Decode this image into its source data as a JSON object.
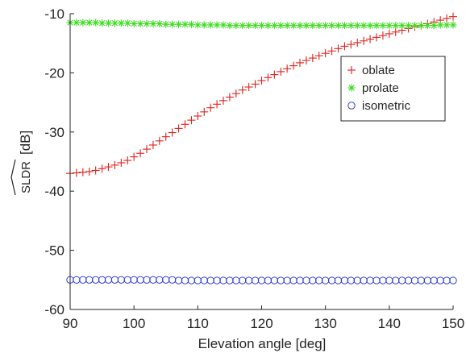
{
  "chart_data": {
    "type": "scatter",
    "xlabel": "Elevation angle [deg]",
    "ylabel": "[dB]",
    "ylabel_math": "SLDR",
    "xlim": [
      90,
      150
    ],
    "ylim": [
      -60,
      -10
    ],
    "xticks": [
      90,
      100,
      110,
      120,
      130,
      140,
      150
    ],
    "yticks": [
      -60,
      -50,
      -40,
      -30,
      -20,
      -10
    ],
    "grid": false,
    "legend_position": "top-right",
    "series": [
      {
        "name": "oblate",
        "marker": "plus",
        "color": "#e0201b",
        "x": [
          90,
          91,
          92,
          93,
          94,
          95,
          96,
          97,
          98,
          99,
          100,
          101,
          102,
          103,
          104,
          105,
          106,
          107,
          108,
          109,
          110,
          111,
          112,
          113,
          114,
          115,
          116,
          117,
          118,
          119,
          120,
          121,
          122,
          123,
          124,
          125,
          126,
          127,
          128,
          129,
          130,
          131,
          132,
          133,
          134,
          135,
          136,
          137,
          138,
          139,
          140,
          141,
          142,
          143,
          144,
          145,
          146,
          147,
          148,
          149,
          150
        ],
        "y": [
          -37.0,
          -36.9,
          -36.8,
          -36.7,
          -36.5,
          -36.2,
          -35.9,
          -35.6,
          -35.2,
          -34.8,
          -34.2,
          -33.6,
          -32.9,
          -32.2,
          -31.5,
          -30.8,
          -30.1,
          -29.4,
          -28.7,
          -28.0,
          -27.3,
          -26.6,
          -25.9,
          -25.3,
          -24.7,
          -24.1,
          -23.5,
          -22.9,
          -22.4,
          -21.9,
          -21.3,
          -20.8,
          -20.3,
          -19.8,
          -19.3,
          -18.8,
          -18.3,
          -17.9,
          -17.5,
          -17.1,
          -16.7,
          -16.3,
          -15.9,
          -15.5,
          -15.2,
          -14.9,
          -14.6,
          -14.3,
          -14.0,
          -13.7,
          -13.4,
          -13.1,
          -12.8,
          -12.5,
          -12.2,
          -12.0,
          -11.7,
          -11.4,
          -11.1,
          -10.8,
          -10.5
        ]
      },
      {
        "name": "prolate",
        "marker": "asterisk",
        "color": "#3ddc1f",
        "x": [
          90,
          91,
          92,
          93,
          94,
          95,
          96,
          97,
          98,
          99,
          100,
          101,
          102,
          103,
          104,
          105,
          106,
          107,
          108,
          109,
          110,
          111,
          112,
          113,
          114,
          115,
          116,
          117,
          118,
          119,
          120,
          121,
          122,
          123,
          124,
          125,
          126,
          127,
          128,
          129,
          130,
          131,
          132,
          133,
          134,
          135,
          136,
          137,
          138,
          139,
          140,
          141,
          142,
          143,
          144,
          145,
          146,
          147,
          148,
          149,
          150
        ],
        "y": [
          -11.5,
          -11.5,
          -11.5,
          -11.5,
          -11.5,
          -11.6,
          -11.6,
          -11.6,
          -11.6,
          -11.6,
          -11.7,
          -11.7,
          -11.7,
          -11.7,
          -11.7,
          -11.8,
          -11.8,
          -11.8,
          -11.8,
          -11.8,
          -11.9,
          -11.9,
          -11.9,
          -11.9,
          -11.9,
          -12.0,
          -12.0,
          -12.0,
          -12.0,
          -12.0,
          -12.0,
          -12.0,
          -12.0,
          -12.0,
          -12.0,
          -12.0,
          -12.0,
          -12.0,
          -12.0,
          -12.0,
          -12.0,
          -12.0,
          -12.0,
          -12.0,
          -12.0,
          -12.0,
          -12.0,
          -12.0,
          -12.0,
          -12.0,
          -12.0,
          -12.0,
          -12.0,
          -12.0,
          -12.0,
          -12.0,
          -12.0,
          -12.0,
          -11.9,
          -11.9,
          -11.9
        ]
      },
      {
        "name": "isometric",
        "marker": "circle",
        "color": "#2f3fd6",
        "x": [
          90,
          91,
          92,
          93,
          94,
          95,
          96,
          97,
          98,
          99,
          100,
          101,
          102,
          103,
          104,
          105,
          106,
          107,
          108,
          109,
          110,
          111,
          112,
          113,
          114,
          115,
          116,
          117,
          118,
          119,
          120,
          121,
          122,
          123,
          124,
          125,
          126,
          127,
          128,
          129,
          130,
          131,
          132,
          133,
          134,
          135,
          136,
          137,
          138,
          139,
          140,
          141,
          142,
          143,
          144,
          145,
          146,
          147,
          148,
          149,
          150
        ],
        "y": [
          -55.0,
          -55.0,
          -55.0,
          -55.0,
          -55.0,
          -55.0,
          -55.0,
          -55.0,
          -55.0,
          -55.0,
          -55.0,
          -55.0,
          -55.0,
          -55.0,
          -55.0,
          -55.0,
          -55.0,
          -55.1,
          -55.1,
          -55.1,
          -55.1,
          -55.1,
          -55.1,
          -55.1,
          -55.1,
          -55.1,
          -55.1,
          -55.1,
          -55.1,
          -55.1,
          -55.1,
          -55.1,
          -55.1,
          -55.1,
          -55.1,
          -55.1,
          -55.1,
          -55.1,
          -55.1,
          -55.1,
          -55.1,
          -55.1,
          -55.1,
          -55.1,
          -55.1,
          -55.1,
          -55.1,
          -55.1,
          -55.1,
          -55.1,
          -55.1,
          -55.1,
          -55.1,
          -55.1,
          -55.1,
          -55.1,
          -55.1,
          -55.1,
          -55.1,
          -55.1,
          -55.1
        ]
      }
    ]
  }
}
